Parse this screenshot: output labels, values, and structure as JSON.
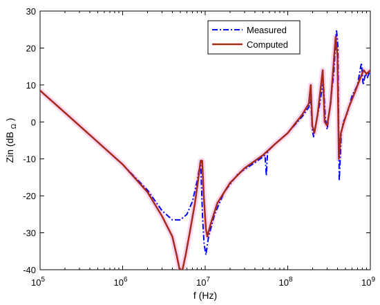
{
  "chart_data": {
    "type": "line",
    "xscale": "log",
    "xlim": [
      100000,
      1000000000
    ],
    "ylim": [
      -40,
      30
    ],
    "xlabel": "f (Hz)",
    "ylabel": "Zin (dB",
    "ylabel_sub": "Ω",
    "ylabel_close": ")",
    "x_tick_labels": [
      {
        "base": "10",
        "exp": "5",
        "value": 100000
      },
      {
        "base": "10",
        "exp": "6",
        "value": 1000000
      },
      {
        "base": "10",
        "exp": "7",
        "value": 10000000
      },
      {
        "base": "10",
        "exp": "8",
        "value": 100000000
      },
      {
        "base": "10",
        "exp": "9",
        "value": 1000000000
      }
    ],
    "y_ticks": [
      30,
      20,
      10,
      0,
      -10,
      -20,
      -30,
      -40
    ],
    "y_tick_labels": [
      "30",
      "20",
      "10",
      "0",
      "-10",
      "-20",
      "-30",
      "-40"
    ],
    "grid": false,
    "legend_position": "top-right",
    "series": [
      {
        "name": "Measured",
        "color": "#0000ff",
        "style": "dash-dot",
        "points": [
          [
            100000,
            8.5
          ],
          [
            200000,
            2.5
          ],
          [
            400000,
            -3.5
          ],
          [
            1000000,
            -11.5
          ],
          [
            2000000,
            -18.5
          ],
          [
            3000000,
            -24
          ],
          [
            4000000,
            -26.5
          ],
          [
            5000000,
            -26.5
          ],
          [
            6000000,
            -25
          ],
          [
            7000000,
            -21.5
          ],
          [
            8000000,
            -16
          ],
          [
            8800000,
            -10.5
          ],
          [
            9300000,
            -26
          ],
          [
            9700000,
            -33
          ],
          [
            10200000,
            -36
          ],
          [
            11000000,
            -31
          ],
          [
            13000000,
            -25
          ],
          [
            17000000,
            -19
          ],
          [
            25000000,
            -14
          ],
          [
            40000000,
            -11
          ],
          [
            53000000,
            -9
          ],
          [
            55000000,
            -14.5
          ],
          [
            57000000,
            -8
          ],
          [
            70000000,
            -6
          ],
          [
            100000000,
            -3
          ],
          [
            150000000,
            1.5
          ],
          [
            180000000,
            4
          ],
          [
            190000000,
            6
          ],
          [
            198000000,
            -2
          ],
          [
            205000000,
            -4
          ],
          [
            215000000,
            -1.5
          ],
          [
            240000000,
            4
          ],
          [
            270000000,
            11
          ],
          [
            285000000,
            1
          ],
          [
            300000000,
            -2
          ],
          [
            320000000,
            3
          ],
          [
            360000000,
            13
          ],
          [
            390000000,
            25
          ],
          [
            405000000,
            20
          ],
          [
            420000000,
            -16
          ],
          [
            445000000,
            -3
          ],
          [
            470000000,
            0
          ],
          [
            520000000,
            2
          ],
          [
            600000000,
            7
          ],
          [
            700000000,
            10
          ],
          [
            780000000,
            16
          ],
          [
            820000000,
            10
          ],
          [
            870000000,
            13
          ],
          [
            920000000,
            12
          ],
          [
            1000000000,
            14
          ]
        ]
      },
      {
        "name": "Computed",
        "color": "#a52a1a",
        "style": "solid",
        "points": [
          [
            100000,
            8.5
          ],
          [
            200000,
            2.5
          ],
          [
            400000,
            -3.5
          ],
          [
            1000000,
            -11.5
          ],
          [
            2000000,
            -19
          ],
          [
            3000000,
            -25.5
          ],
          [
            4000000,
            -31
          ],
          [
            4500000,
            -36
          ],
          [
            4900000,
            -40
          ],
          [
            5300000,
            -40
          ],
          [
            5800000,
            -36
          ],
          [
            6500000,
            -30
          ],
          [
            7500000,
            -22
          ],
          [
            8300000,
            -15
          ],
          [
            8800000,
            -10.5
          ],
          [
            9200000,
            -10.5
          ],
          [
            9600000,
            -20
          ],
          [
            10200000,
            -29
          ],
          [
            10600000,
            -31
          ],
          [
            11500000,
            -28
          ],
          [
            14000000,
            -22
          ],
          [
            20000000,
            -16.5
          ],
          [
            30000000,
            -12.5
          ],
          [
            50000000,
            -9
          ],
          [
            70000000,
            -6
          ],
          [
            100000000,
            -3
          ],
          [
            150000000,
            2
          ],
          [
            180000000,
            5
          ],
          [
            190000000,
            10
          ],
          [
            198000000,
            -1
          ],
          [
            210000000,
            -3
          ],
          [
            230000000,
            2
          ],
          [
            265000000,
            14
          ],
          [
            280000000,
            0
          ],
          [
            300000000,
            -1
          ],
          [
            330000000,
            5
          ],
          [
            380000000,
            23
          ],
          [
            400000000,
            18
          ],
          [
            415000000,
            -10
          ],
          [
            440000000,
            -3
          ],
          [
            480000000,
            0
          ],
          [
            550000000,
            4
          ],
          [
            650000000,
            8
          ],
          [
            760000000,
            12
          ],
          [
            830000000,
            14
          ],
          [
            900000000,
            13
          ],
          [
            1000000000,
            14
          ]
        ]
      }
    ]
  }
}
